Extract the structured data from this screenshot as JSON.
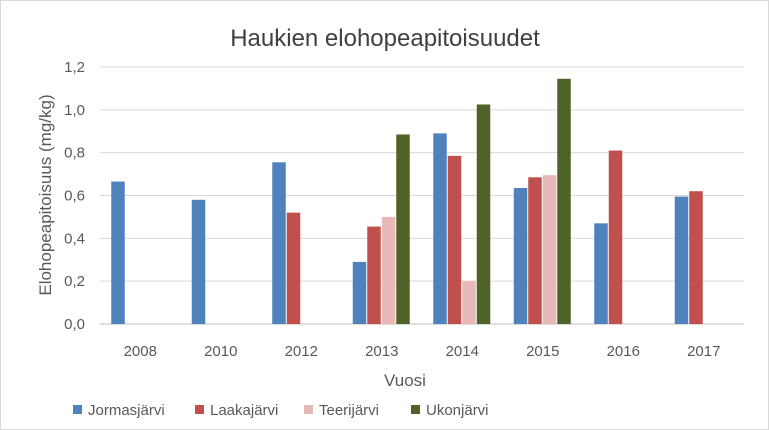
{
  "chart_data": {
    "type": "bar",
    "title": "Haukien elohopeapitoisuudet",
    "xlabel": "Vuosi",
    "ylabel": "Elohopeapitoisuus (mg/kg)",
    "ylim": [
      0,
      1.2
    ],
    "yticks": [
      "0,0",
      "0,2",
      "0,4",
      "0,6",
      "0,8",
      "1,0",
      "1,2"
    ],
    "ytick_values": [
      0,
      0.2,
      0.4,
      0.6,
      0.8,
      1.0,
      1.2
    ],
    "grid": true,
    "legend_position": "bottom",
    "categories": [
      "2008",
      "2010",
      "2012",
      "2013",
      "2014",
      "2015",
      "2016",
      "2017"
    ],
    "series": [
      {
        "name": "Jormasjärvi",
        "color": "#4f81bd",
        "values": [
          0.665,
          0.58,
          0.755,
          0.29,
          0.89,
          0.635,
          0.47,
          0.595
        ]
      },
      {
        "name": "Laakajärvi",
        "color": "#c0504d",
        "values": [
          null,
          null,
          0.52,
          0.455,
          0.785,
          0.685,
          0.81,
          0.62
        ]
      },
      {
        "name": "Teerijärvi",
        "color": "#e6b9b8",
        "values": [
          null,
          null,
          null,
          0.5,
          0.2,
          0.695,
          null,
          null
        ]
      },
      {
        "name": "Ukonjärvi",
        "color": "#4f6228",
        "values": [
          null,
          null,
          null,
          0.885,
          1.025,
          1.145,
          null,
          null
        ]
      }
    ]
  }
}
